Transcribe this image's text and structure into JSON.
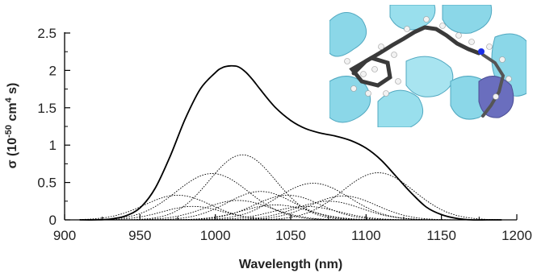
{
  "chart_data": {
    "type": "line",
    "xlabel": "Wavelength (nm)",
    "ylabel_prefix": "σ (10",
    "ylabel_exp1": "-50",
    "ylabel_mid": " cm",
    "ylabel_exp2": "4",
    "ylabel_suffix": " s)",
    "xlim": [
      900,
      1200
    ],
    "ylim": [
      0,
      2.5
    ],
    "xticks": [
      900,
      950,
      1000,
      1050,
      1100,
      1150,
      1200
    ],
    "yticks": [
      0,
      0.5,
      1,
      1.5,
      2,
      2.5
    ],
    "ytick_labels": [
      "0",
      "0.5",
      "1",
      "1.5",
      "2",
      "2.5"
    ],
    "grid": false,
    "total_spectrum": {
      "style": "solid",
      "color": "#000000",
      "x": [
        910,
        920,
        930,
        940,
        950,
        960,
        970,
        980,
        990,
        1000,
        1005,
        1010,
        1015,
        1020,
        1025,
        1030,
        1040,
        1050,
        1060,
        1070,
        1080,
        1090,
        1100,
        1110,
        1120,
        1130,
        1140,
        1150,
        1160,
        1170,
        1180,
        1190
      ],
      "y": [
        0.0,
        0.0,
        0.01,
        0.05,
        0.16,
        0.42,
        0.85,
        1.35,
        1.75,
        1.97,
        2.04,
        2.06,
        2.05,
        1.98,
        1.87,
        1.74,
        1.5,
        1.33,
        1.22,
        1.16,
        1.12,
        1.06,
        0.96,
        0.8,
        0.58,
        0.36,
        0.17,
        0.07,
        0.02,
        0.0,
        0.0,
        0.0
      ]
    },
    "components": [
      {
        "center": 975,
        "amplitude": 0.33,
        "width": 22
      },
      {
        "center": 985,
        "amplitude": 0.18,
        "width": 20
      },
      {
        "center": 998,
        "amplitude": 0.62,
        "width": 24
      },
      {
        "center": 1015,
        "amplitude": 0.26,
        "width": 22
      },
      {
        "center": 1018,
        "amplitude": 0.87,
        "width": 22
      },
      {
        "center": 1030,
        "amplitude": 0.38,
        "width": 22
      },
      {
        "center": 1040,
        "amplitude": 0.2,
        "width": 22
      },
      {
        "center": 1048,
        "amplitude": 0.33,
        "width": 22
      },
      {
        "center": 1060,
        "amplitude": 0.18,
        "width": 22
      },
      {
        "center": 1065,
        "amplitude": 0.49,
        "width": 24
      },
      {
        "center": 1075,
        "amplitude": 0.25,
        "width": 22
      },
      {
        "center": 1085,
        "amplitude": 0.32,
        "width": 22
      },
      {
        "center": 1108,
        "amplitude": 0.63,
        "width": 24
      }
    ],
    "component_style": "dotted",
    "colors": {
      "line": "#000000",
      "helix": "#7fd3e6",
      "helix_dark": "#3f9fba",
      "helix_highlight": "#5a5fb8",
      "carbon": "#3a3a3a",
      "hydrogen": "#f2f2f2",
      "nitrogen": "#1a2ee8"
    }
  },
  "inset": {
    "content": "molecular-structure-image"
  }
}
